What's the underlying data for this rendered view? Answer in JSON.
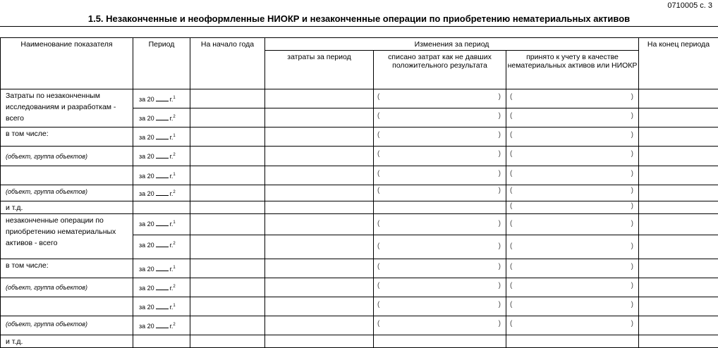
{
  "header": {
    "form_code": "0710005 с. 3",
    "title": "1.5. Незаконченные и неоформленные НИОКР и незаконченные операции по приобретению нематериальных активов"
  },
  "columns": {
    "name": "Наименование показателя",
    "period": "Период",
    "start": "На начало года",
    "changes": "Изменения за период",
    "costs": "затраты за период",
    "written_off": "списано затрат как не давших положительного результата",
    "accepted": "принято к учету в качестве нематериальных активов или НИОКР",
    "end": "На конец периода"
  },
  "period_labels": {
    "prefix": "за 20",
    "suffix": "г.",
    "sup1": "1",
    "sup2": "2"
  },
  "brackets": {
    "open": "(",
    "close": ")"
  },
  "rows": {
    "r1_label": "Затраты по незаконченным исследованиям и разработкам - всего",
    "incl1": "в том числе:",
    "obj1": "(объект, группа объектов)",
    "obj2": "(объект, группа объектов)",
    "etc1": "и т.д.",
    "r2_label": "незаконченные операции по приобретению нематериальных активов - всего",
    "incl2": "в том числе:",
    "obj3": "(объект, группа объектов)",
    "obj4": "(объект, группа объектов)",
    "etc2": "и т.д."
  }
}
